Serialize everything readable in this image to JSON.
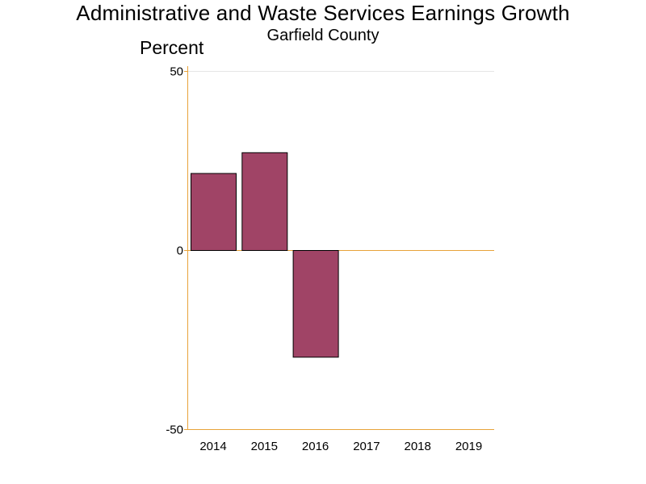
{
  "chart_data": {
    "type": "bar",
    "title": "Administrative and Waste Services Earnings Growth",
    "subtitle": "Garfield County",
    "ylabel": "Percent",
    "xlabel": "",
    "categories": [
      "2014",
      "2015",
      "2016",
      "2017",
      "2018",
      "2019"
    ],
    "values": [
      21.5,
      27.3,
      -29.8,
      null,
      null,
      null
    ],
    "ylim": [
      -50,
      50
    ],
    "yticks": [
      50,
      0,
      -50
    ],
    "grid": false,
    "legend": "none",
    "colors": {
      "bar_fill": "#a04466",
      "bar_stroke": "#000000",
      "axis": "#e8a33a",
      "top_gridline": "#e6e6e6"
    }
  }
}
